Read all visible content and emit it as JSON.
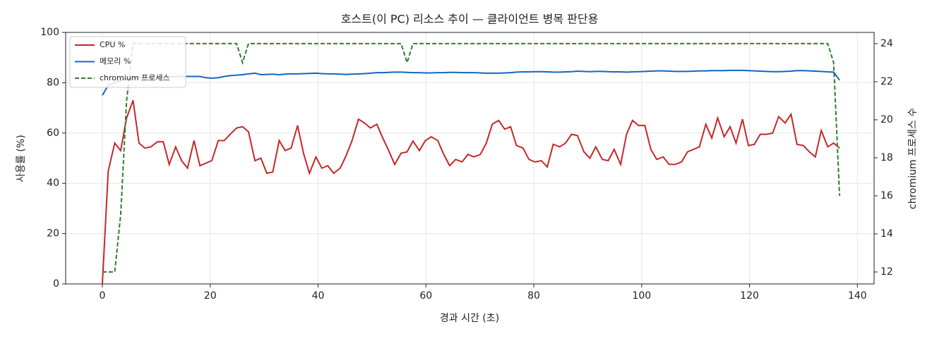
{
  "chart_data": {
    "type": "line",
    "title": "호스트(이 PC) 리소스 추이 — 클라이언트 병목 판단용",
    "xlabel": "경과 시간 (초)",
    "ylabel": "사용률 (%)",
    "y2label": "chromium 프로세스 수",
    "xlim": [
      -6.8,
      143.1
    ],
    "xticks": [
      0,
      20,
      40,
      60,
      80,
      100,
      120,
      140
    ],
    "ylim": [
      0,
      100
    ],
    "yticks": [
      0,
      20,
      40,
      60,
      80,
      100
    ],
    "y2lim": [
      11.37,
      24.59
    ],
    "y2ticks": [
      12,
      14,
      16,
      18,
      20,
      22,
      24
    ],
    "grid": true,
    "legend": "upper left",
    "x": [
      0,
      1.1,
      2.3,
      3.4,
      4.5,
      5.7,
      6.8,
      7.9,
      9.0,
      10.2,
      11.3,
      12.4,
      13.6,
      14.7,
      15.8,
      17.0,
      18.1,
      19.2,
      20.3,
      21.5,
      22.6,
      23.7,
      24.9,
      26.0,
      27.1,
      28.3,
      29.4,
      30.5,
      31.6,
      32.8,
      33.9,
      35.0,
      36.2,
      37.3,
      38.4,
      39.6,
      40.7,
      41.8,
      42.9,
      44.1,
      45.2,
      46.3,
      47.5,
      48.6,
      49.7,
      50.9,
      52.0,
      53.1,
      54.2,
      55.4,
      56.5,
      57.6,
      58.8,
      59.9,
      61.0,
      62.2,
      63.3,
      64.4,
      65.5,
      66.7,
      67.8,
      68.9,
      70.1,
      71.2,
      72.3,
      73.5,
      74.6,
      75.7,
      76.8,
      78.0,
      79.1,
      80.2,
      81.4,
      82.5,
      83.6,
      84.8,
      85.9,
      87.0,
      88.1,
      89.3,
      90.4,
      91.5,
      92.7,
      93.8,
      94.9,
      96.1,
      97.2,
      98.3,
      99.4,
      100.6,
      101.7,
      102.8,
      104.0,
      105.1,
      106.2,
      107.4,
      108.5,
      109.6,
      110.7,
      111.9,
      113.0,
      114.1,
      115.3,
      116.4,
      117.5,
      118.7,
      119.8,
      120.9,
      122.0,
      123.2,
      124.3,
      125.4,
      126.6,
      127.7,
      128.8,
      130.0,
      131.1,
      132.2,
      133.3,
      134.5,
      135.6,
      136.7
    ],
    "series": [
      {
        "name": "CPU %",
        "color": "#c62828",
        "values": [
          0,
          45,
          56,
          53,
          66,
          73,
          56,
          54,
          54.5,
          56.5,
          56.5,
          47.5,
          54.5,
          49,
          46,
          57,
          47,
          48,
          49,
          57,
          57,
          59.5,
          62,
          62.5,
          60.5,
          49,
          50,
          44,
          44.5,
          57,
          53,
          54,
          63,
          52,
          44,
          50.5,
          46,
          47,
          44,
          46,
          51,
          57,
          65.5,
          64,
          62,
          63.5,
          58,
          53,
          47.5,
          52,
          52.5,
          56.8,
          53,
          57,
          58.5,
          57,
          51.5,
          47,
          49.5,
          48.5,
          51.5,
          50.5,
          51.5,
          56,
          63.5,
          65,
          61.5,
          62.5,
          55,
          54,
          49.5,
          48.5,
          49,
          46.5,
          55.5,
          54.5,
          56,
          59.5,
          59,
          52.5,
          50,
          54.5,
          49.5,
          49,
          53.5,
          47.5,
          59.5,
          65,
          63,
          63,
          53.5,
          49.5,
          50.5,
          47.5,
          47.5,
          48.5,
          52.5,
          53.5,
          54.5,
          63.5,
          58,
          66,
          58.5,
          62.5,
          56,
          65.5,
          55,
          55.5,
          59.5,
          59.5,
          60,
          66.5,
          64,
          67.5,
          55.5,
          55,
          52.5,
          50.5,
          61,
          54.5,
          56,
          54
        ]
      },
      {
        "name": "메모리 %",
        "color": "#1565c0",
        "values": [
          75,
          79,
          80,
          81,
          81.5,
          82,
          82,
          82,
          82.2,
          82.3,
          82.4,
          82.5,
          82.5,
          82.5,
          82.5,
          82.5,
          82.5,
          82,
          81.8,
          82,
          82.5,
          82.8,
          83,
          83.2,
          83.5,
          83.8,
          83.2,
          83.3,
          83.4,
          83.2,
          83.4,
          83.5,
          83.5,
          83.6,
          83.7,
          83.8,
          83.6,
          83.5,
          83.5,
          83.4,
          83.3,
          83.4,
          83.5,
          83.6,
          83.8,
          84,
          84,
          84.1,
          84.2,
          84.2,
          84.1,
          84,
          84,
          83.9,
          83.9,
          84,
          84,
          84.1,
          84.1,
          84,
          84,
          84,
          83.9,
          83.8,
          83.8,
          83.8,
          83.9,
          84,
          84.2,
          84.3,
          84.3,
          84.4,
          84.4,
          84.3,
          84.2,
          84.2,
          84.3,
          84.4,
          84.6,
          84.5,
          84.4,
          84.5,
          84.5,
          84.4,
          84.3,
          84.3,
          84.2,
          84.3,
          84.4,
          84.5,
          84.6,
          84.7,
          84.7,
          84.6,
          84.5,
          84.5,
          84.5,
          84.6,
          84.7,
          84.7,
          84.8,
          84.8,
          84.8,
          84.9,
          84.9,
          84.9,
          84.8,
          84.7,
          84.6,
          84.5,
          84.4,
          84.4,
          84.5,
          84.6,
          84.8,
          84.8,
          84.7,
          84.6,
          84.5,
          84.3,
          84.2,
          81
        ]
      },
      {
        "name": "chromium 프로세스",
        "color": "#2e7d32",
        "linestyle": "dashed",
        "axis": "y2",
        "values": [
          12,
          12,
          12,
          15,
          21,
          24,
          24,
          24,
          24,
          24,
          24,
          24,
          24,
          24,
          24,
          24,
          24,
          24,
          24,
          24,
          24,
          24,
          24,
          23,
          24,
          24,
          24,
          24,
          24,
          24,
          24,
          24,
          24,
          24,
          24,
          24,
          24,
          24,
          24,
          24,
          24,
          24,
          24,
          24,
          24,
          24,
          24,
          24,
          24,
          24,
          23,
          24,
          24,
          24,
          24,
          24,
          24,
          24,
          24,
          24,
          24,
          24,
          24,
          24,
          24,
          24,
          24,
          24,
          24,
          24,
          24,
          24,
          24,
          24,
          24,
          24,
          24,
          24,
          24,
          24,
          24,
          24,
          24,
          24,
          24,
          24,
          24,
          24,
          24,
          24,
          24,
          24,
          24,
          24,
          24,
          24,
          24,
          24,
          24,
          24,
          24,
          24,
          24,
          24,
          24,
          24,
          24,
          24,
          24,
          24,
          24,
          24,
          24,
          24,
          24,
          24,
          24,
          24,
          24,
          24,
          23,
          16
        ]
      }
    ]
  }
}
